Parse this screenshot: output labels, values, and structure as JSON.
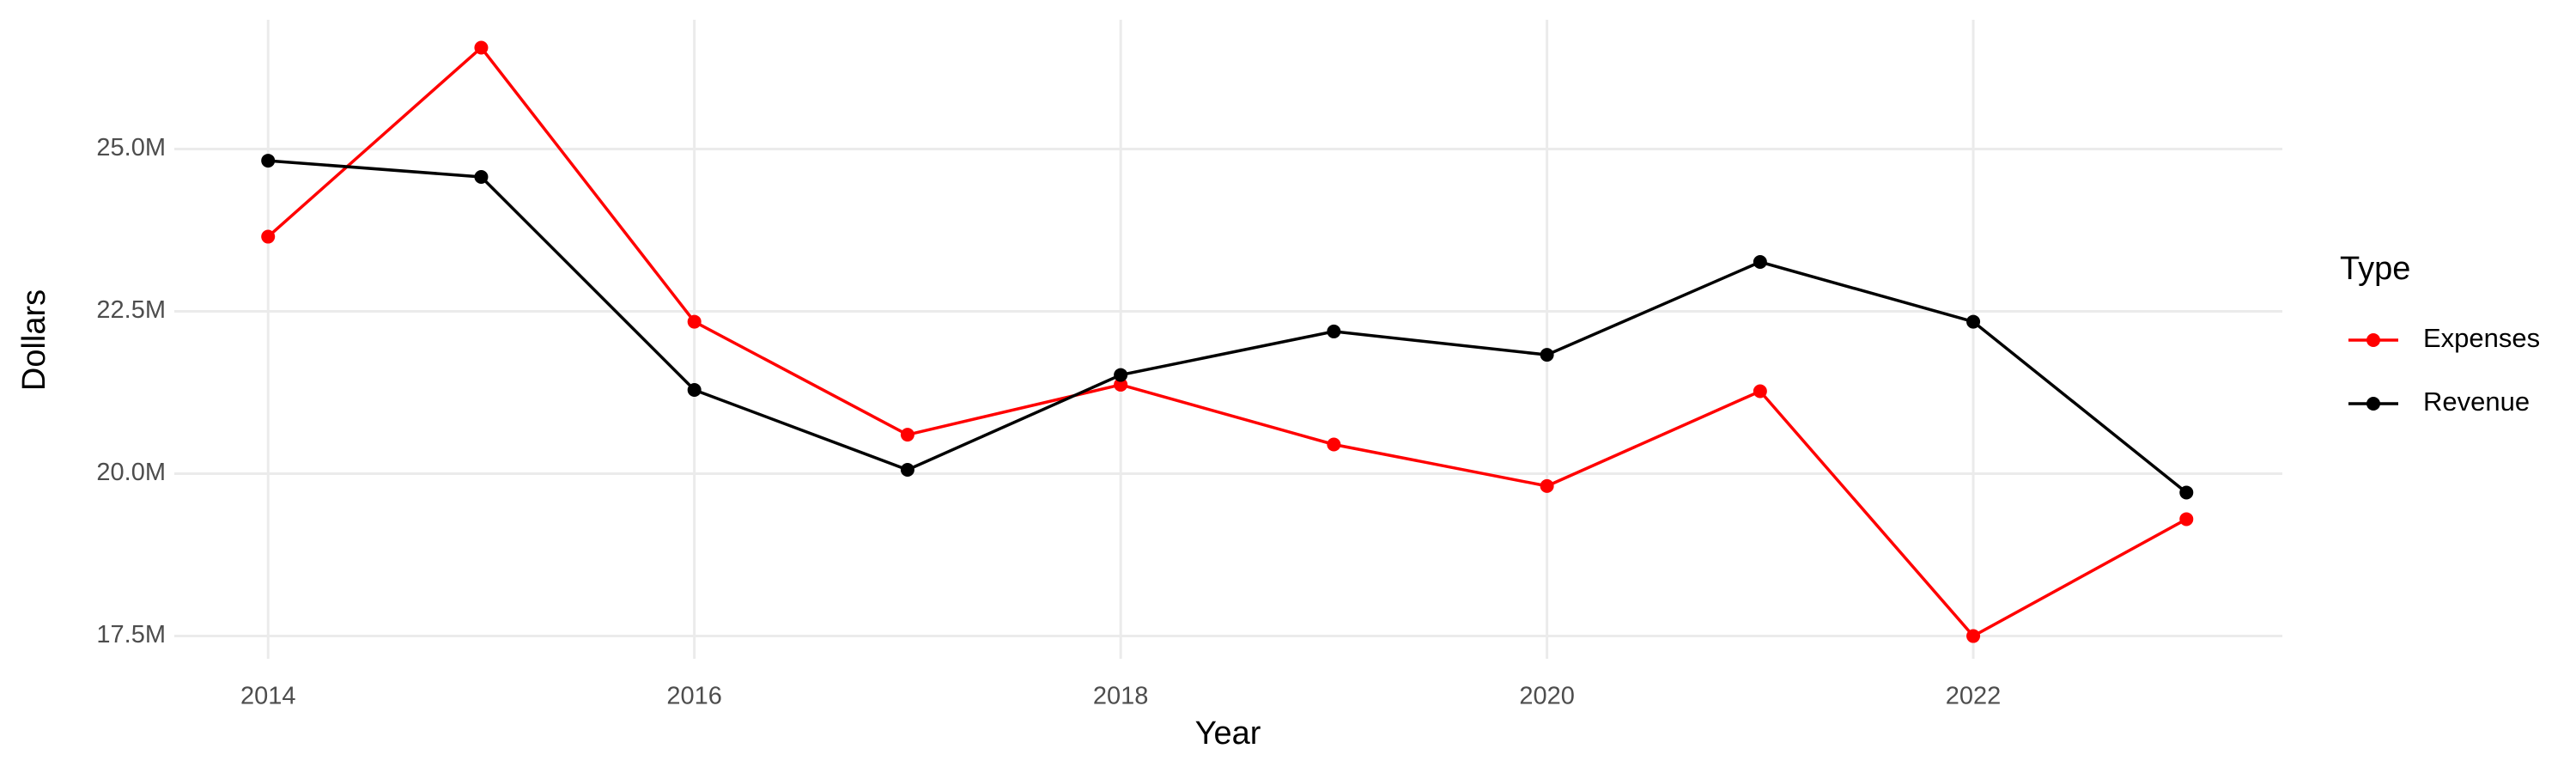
{
  "chart_data": {
    "type": "line",
    "x_label": "Year",
    "y_label": "Dollars",
    "legend_title": "Type",
    "x": [
      2014,
      2015,
      2016,
      2017,
      2018,
      2019,
      2020,
      2021,
      2022,
      2023
    ],
    "series": [
      {
        "name": "Expenses",
        "color": "#ff0000",
        "values": [
          23650000,
          26560000,
          22340000,
          20600000,
          21370000,
          20450000,
          19810000,
          21270000,
          17500000,
          19300000
        ]
      },
      {
        "name": "Revenue",
        "color": "#000000",
        "values": [
          24820000,
          24570000,
          21290000,
          20060000,
          21520000,
          22190000,
          21830000,
          23260000,
          22340000,
          19710000
        ]
      }
    ],
    "xlim": [
      2013.56,
      2023.45
    ],
    "ylim": [
      17150000,
      26990000
    ],
    "xticks": [
      2014,
      2016,
      2018,
      2020,
      2022
    ],
    "yticks": [
      {
        "value": 17500000,
        "label": "17.5M"
      },
      {
        "value": 20000000,
        "label": "20.0M"
      },
      {
        "value": 22500000,
        "label": "22.5M"
      },
      {
        "value": 25000000,
        "label": "25.0M"
      }
    ],
    "grid": true,
    "legend_position": "right"
  }
}
